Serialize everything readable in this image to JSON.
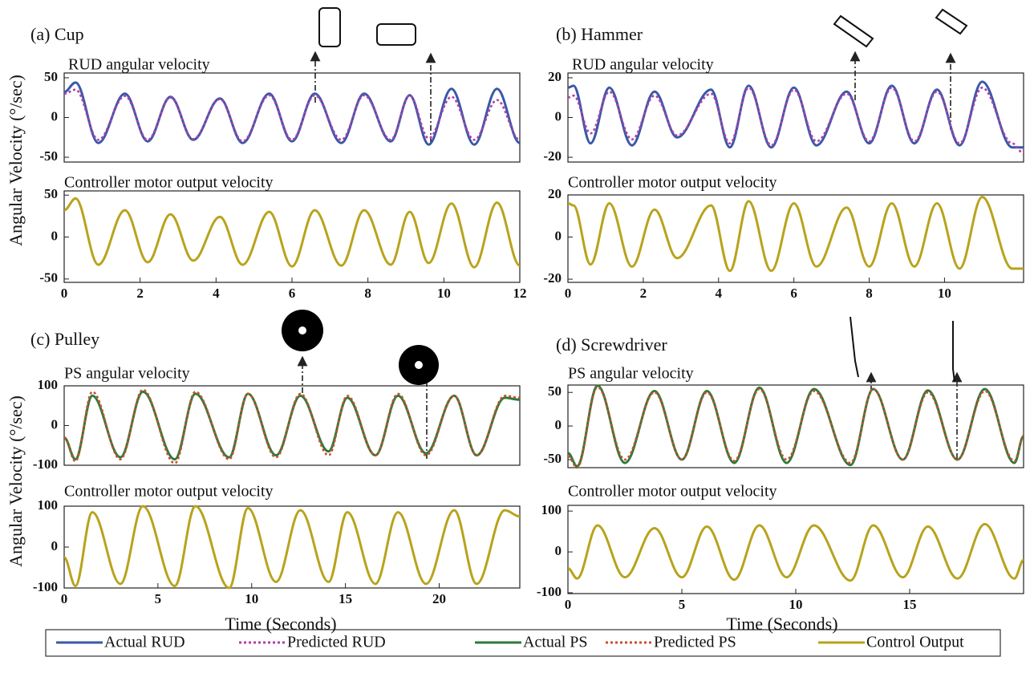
{
  "chart_data": [
    {
      "type": "line",
      "title": "(a) Cup",
      "subtitle": "RUD angular velocity",
      "ylabel": "Angular Velocity (°/sec)",
      "x": [
        0,
        0.3,
        0.9,
        1.6,
        2.2,
        2.8,
        3.4,
        4.1,
        4.7,
        5.4,
        6.0,
        6.6,
        7.3,
        7.9,
        8.6,
        9.1,
        9.6,
        10.2,
        10.8,
        11.4,
        12
      ],
      "series": [
        {
          "name": "Actual RUD",
          "color": "#3a58a8",
          "values": [
            32,
            44,
            -32,
            30,
            -30,
            26,
            -28,
            24,
            -32,
            30,
            -30,
            30,
            -32,
            30,
            -30,
            28,
            -34,
            36,
            -34,
            36,
            -32
          ]
        },
        {
          "name": "Predicted RUD",
          "color": "#b040a8",
          "dotted": true,
          "values": [
            30,
            35,
            -28,
            27,
            -28,
            25,
            -27,
            23,
            -30,
            28,
            -28,
            28,
            -28,
            28,
            -28,
            28,
            -26,
            26,
            -28,
            22,
            -28
          ]
        }
      ],
      "xlim": [
        0,
        12
      ],
      "ylim": [
        -56,
        56
      ],
      "yticks": [
        -50,
        0,
        50
      ]
    },
    {
      "type": "line",
      "subtitle": "Controller motor output velocity",
      "x": [
        0,
        0.3,
        0.9,
        1.6,
        2.2,
        2.8,
        3.4,
        4.1,
        4.7,
        5.4,
        6.0,
        6.6,
        7.3,
        7.9,
        8.6,
        9.1,
        9.6,
        10.2,
        10.8,
        11.4,
        12
      ],
      "series": [
        {
          "name": "Control Output",
          "color": "#b8a31c",
          "values": [
            32,
            46,
            -33,
            32,
            -30,
            27,
            -28,
            24,
            -33,
            30,
            -35,
            32,
            -34,
            32,
            -33,
            30,
            -31,
            40,
            -36,
            41,
            -34
          ]
        }
      ],
      "xlim": [
        0,
        12
      ],
      "ylim": [
        -54,
        55
      ],
      "yticks": [
        -50,
        0,
        50
      ],
      "xticks": [
        0,
        2,
        4,
        6,
        8,
        10,
        12
      ]
    },
    {
      "type": "line",
      "title": "(b) Hammer",
      "subtitle": "RUD angular velocity",
      "x": [
        0,
        0.15,
        0.6,
        1.1,
        1.7,
        2.3,
        2.9,
        3.8,
        4.3,
        4.8,
        5.4,
        6.0,
        6.6,
        7.4,
        8.0,
        8.6,
        9.2,
        9.8,
        10.4,
        11.0,
        11.8,
        12.1
      ],
      "series": [
        {
          "name": "Actual RUD",
          "color": "#3a58a8",
          "values": [
            15,
            16,
            -13,
            15,
            -14,
            13,
            -10,
            14,
            -15,
            16,
            -15,
            15,
            -14,
            13,
            -13,
            16,
            -13,
            14,
            -14,
            18,
            -15,
            -15
          ]
        },
        {
          "name": "Predicted RUD",
          "color": "#b040a8",
          "dotted": true,
          "values": [
            10,
            11,
            -8,
            13,
            -11,
            11,
            -9,
            12,
            -13,
            15,
            -14,
            14,
            -12,
            12,
            -12,
            15,
            -12,
            13,
            -13,
            15,
            -13,
            -18
          ]
        }
      ],
      "xlim": [
        0,
        12.1
      ],
      "ylim": [
        -22.4,
        22.4
      ],
      "yticks": [
        -20,
        0,
        20
      ]
    },
    {
      "type": "line",
      "subtitle": "Controller motor output velocity",
      "x": [
        0,
        0.15,
        0.6,
        1.1,
        1.7,
        2.3,
        2.9,
        3.8,
        4.3,
        4.8,
        5.4,
        6.0,
        6.6,
        7.4,
        8.0,
        8.6,
        9.2,
        9.8,
        10.4,
        11.0,
        11.8,
        12.1
      ],
      "series": [
        {
          "name": "Control Output",
          "color": "#b8a31c",
          "values": [
            16,
            15,
            -13,
            16,
            -14,
            13,
            -10,
            15,
            -16,
            17,
            -16,
            16,
            -14,
            14,
            -14,
            16,
            -14,
            16,
            -15,
            19,
            -15,
            -15
          ]
        }
      ],
      "xlim": [
        0,
        12.1
      ],
      "ylim": [
        -21.5,
        20
      ],
      "yticks": [
        -20,
        0,
        20
      ],
      "xticks": [
        0,
        2,
        4,
        6,
        8,
        10
      ]
    },
    {
      "type": "line",
      "title": "(c) Pulley",
      "subtitle": "PS angular velocity",
      "ylabel": "Angular Velocity (°/sec)",
      "x": [
        0,
        0.6,
        1.5,
        3.0,
        4.2,
        5.9,
        7.0,
        8.8,
        9.8,
        11.3,
        12.6,
        14.1,
        15.1,
        16.6,
        17.8,
        19.3,
        20.8,
        22.0,
        23.5,
        24.3
      ],
      "series": [
        {
          "name": "Actual PS",
          "color": "#2f7a3c",
          "values": [
            -30,
            -85,
            75,
            -80,
            85,
            -85,
            80,
            -80,
            80,
            -75,
            75,
            -65,
            70,
            -75,
            75,
            -70,
            75,
            -75,
            70,
            65
          ]
        },
        {
          "name": "Predicted PS",
          "color": "#c8502c",
          "dotted": true,
          "values": [
            -30,
            -90,
            85,
            -85,
            90,
            -95,
            85,
            -85,
            80,
            -80,
            80,
            -75,
            75,
            -75,
            80,
            -75,
            75,
            -75,
            75,
            70
          ]
        }
      ],
      "xlim": [
        0,
        24.3
      ],
      "ylim": [
        -100,
        100
      ],
      "yticks": [
        -100,
        0,
        100
      ]
    },
    {
      "type": "line",
      "subtitle": "Controller motor output velocity",
      "xlabel": "Time (Seconds)",
      "x": [
        0,
        0.6,
        1.5,
        3.0,
        4.2,
        5.9,
        7.0,
        8.8,
        9.8,
        11.3,
        12.6,
        14.1,
        15.1,
        16.6,
        17.8,
        19.3,
        20.8,
        22.0,
        23.5,
        24.3
      ],
      "series": [
        {
          "name": "Control Output",
          "color": "#b8a31c",
          "values": [
            -25,
            -95,
            85,
            -90,
            100,
            -95,
            100,
            -100,
            95,
            -85,
            90,
            -85,
            85,
            -90,
            85,
            -90,
            90,
            -90,
            90,
            75
          ]
        }
      ],
      "xlim": [
        0,
        24.3
      ],
      "ylim": [
        -100,
        100
      ],
      "yticks": [
        -100,
        0,
        100
      ],
      "xticks": [
        0,
        5,
        10,
        15,
        20
      ]
    },
    {
      "type": "line",
      "title": "(d) Screwdriver",
      "subtitle": "PS angular velocity",
      "x": [
        0,
        0.4,
        1.3,
        2.5,
        3.8,
        5.0,
        6.1,
        7.3,
        8.4,
        9.6,
        10.8,
        12.4,
        13.4,
        14.7,
        15.8,
        17.1,
        18.3,
        19.6,
        20
      ],
      "series": [
        {
          "name": "Actual PS",
          "color": "#2f7a3c",
          "values": [
            -40,
            -60,
            60,
            -55,
            52,
            -50,
            52,
            -55,
            57,
            -55,
            55,
            -58,
            55,
            -50,
            53,
            -50,
            55,
            -55,
            -15
          ]
        },
        {
          "name": "Predicted PS",
          "color": "#c8502c",
          "dotted": true,
          "values": [
            -45,
            -62,
            58,
            -50,
            50,
            -50,
            50,
            -52,
            55,
            -50,
            52,
            -55,
            55,
            -50,
            50,
            -50,
            52,
            -52,
            -15
          ]
        }
      ],
      "xlim": [
        0,
        20
      ],
      "ylim": [
        -62,
        61
      ],
      "yticks": [
        -50,
        0,
        50
      ]
    },
    {
      "type": "line",
      "subtitle": "Controller motor output velocity",
      "xlabel": "Time (Seconds)",
      "x": [
        0,
        0.4,
        1.3,
        2.5,
        3.8,
        5.0,
        6.1,
        7.3,
        8.4,
        9.6,
        10.8,
        12.4,
        13.4,
        14.7,
        15.8,
        17.1,
        18.3,
        19.6,
        20
      ],
      "series": [
        {
          "name": "Control Output",
          "color": "#b8a31c",
          "values": [
            -40,
            -65,
            65,
            -62,
            58,
            -62,
            62,
            -68,
            65,
            -62,
            65,
            -70,
            65,
            -62,
            62,
            -65,
            68,
            -65,
            -20
          ]
        }
      ],
      "xlim": [
        0,
        20
      ],
      "ylim": [
        -102,
        114
      ],
      "yticks": [
        -100,
        0,
        100
      ],
      "xticks": [
        0,
        5,
        10,
        15
      ]
    }
  ]
}
